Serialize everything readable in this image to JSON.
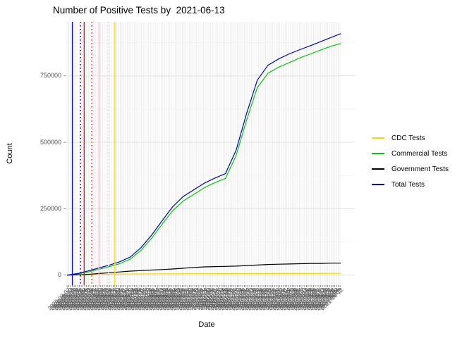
{
  "title": "Number of Positive Tests by  2021-06-13",
  "x_axis": {
    "label": "Date",
    "tick_first": "2020-03-07",
    "tick_last": "2021-06-13",
    "tick_interval_days": 3,
    "tick_angle_deg": 45
  },
  "y_axis": {
    "label": "Count",
    "tick_labels": [
      "0",
      "250000",
      "500000",
      "750000"
    ],
    "tick_values": [
      0,
      250000,
      500000,
      750000
    ],
    "minor_tick_values": [
      125000,
      375000,
      625000,
      875000
    ]
  },
  "legend": {
    "position": "right",
    "items": [
      {
        "label": "CDC Tests",
        "color": "#FFD700"
      },
      {
        "label": "Commercial Tests",
        "color": "#00CC00"
      },
      {
        "label": "Government Tests",
        "color": "#000000"
      },
      {
        "label": "Total Tests",
        "color": "#0000CD"
      }
    ]
  },
  "colors": {
    "grid_major": "#E3E3E3",
    "grid_minor": "#F2F2F2",
    "grid_vertical": "#E9E9E9",
    "axis_text": "#4d4d4d",
    "tick_mark": "#555555"
  },
  "chart_data": {
    "type": "line",
    "title": "Number of Positive Tests by  2021-06-13",
    "xlabel": "Date",
    "ylabel": "Count",
    "ylim": [
      0,
      950000
    ],
    "grid": true,
    "legend_position": "right",
    "x_dates": [
      "2020-03-07",
      "2020-03-25",
      "2020-04-12",
      "2020-04-30",
      "2020-05-18",
      "2020-06-04",
      "2020-06-22",
      "2020-07-10",
      "2020-07-28",
      "2020-08-15",
      "2020-09-02",
      "2020-09-20",
      "2020-10-08",
      "2020-10-26",
      "2020-11-13",
      "2020-11-30",
      "2020-12-18",
      "2021-01-05",
      "2021-01-23",
      "2021-02-10",
      "2021-02-28",
      "2021-03-18",
      "2021-04-05",
      "2021-04-23",
      "2021-05-11",
      "2021-05-28",
      "2021-06-13"
    ],
    "series": [
      {
        "name": "CDC Tests",
        "color": "#FFD700",
        "values": [
          0,
          1000,
          2000,
          3000,
          3500,
          4000,
          4200,
          4500,
          4700,
          5000,
          5000,
          5200,
          5300,
          5400,
          5500,
          5500,
          5600,
          5700,
          5800,
          5900,
          6000,
          6000,
          6100,
          6200,
          6300,
          6400,
          6500
        ]
      },
      {
        "name": "Commercial Tests",
        "color": "#00CC00",
        "values": [
          0,
          4000,
          12000,
          22000,
          32000,
          43000,
          60000,
          93000,
          138000,
          192000,
          243000,
          280000,
          305000,
          330000,
          349000,
          364000,
          450000,
          585000,
          706000,
          760000,
          783000,
          800000,
          818000,
          833000,
          848000,
          862000,
          872000
        ]
      },
      {
        "name": "Government Tests",
        "color": "#000000",
        "values": [
          0,
          1000,
          3000,
          6000,
          9000,
          12000,
          15000,
          17000,
          19000,
          21000,
          23000,
          26000,
          29000,
          31000,
          32000,
          33000,
          34000,
          36000,
          38000,
          40000,
          41000,
          42000,
          43000,
          44000,
          44000,
          45000,
          45000
        ]
      },
      {
        "name": "Total Tests",
        "color": "#0000CD",
        "values": [
          0,
          6000,
          16000,
          27000,
          38000,
          50000,
          68000,
          103000,
          150000,
          205000,
          258000,
          297000,
          322000,
          347000,
          366000,
          382000,
          470000,
          610000,
          734000,
          790000,
          814000,
          833000,
          849000,
          864000,
          880000,
          895000,
          909000
        ]
      }
    ],
    "vlines": [
      {
        "date": "2020-03-16",
        "color": "#0000FF",
        "style": "solid"
      },
      {
        "date": "2020-03-30",
        "color": "#0000CC",
        "style": "dotted"
      },
      {
        "date": "2020-04-05",
        "color": "#FF0000",
        "style": "solid"
      },
      {
        "date": "2020-04-18",
        "color": "#CC2222",
        "style": "dotted"
      },
      {
        "date": "2020-04-30",
        "color": "#FFB6C1",
        "style": "solid"
      },
      {
        "date": "2020-05-16",
        "color": "#FFCCD5",
        "style": "dotted"
      },
      {
        "date": "2020-05-27",
        "color": "#FFD700",
        "style": "solid"
      }
    ]
  }
}
